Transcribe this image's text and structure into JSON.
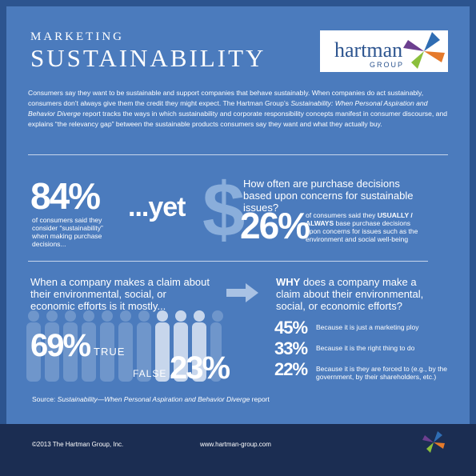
{
  "header": {
    "kicker": "MARKETING",
    "title": "SUSTAINABILITY",
    "logo": {
      "name": "hartman",
      "sub": "GROUP"
    }
  },
  "intro": [
    "Consumers say they want to be sustainable and support companies that behave sustainably. When companies do act sustainably, consumers don’t always give them the credit they might expect. The Hartman Group’s ",
    "Sustainability: When Personal Aspiration and Behavior Diverge",
    " report tracks the ways in which sustainability and corporate responsibility concepts manifest in consumer discourse, and explains “the relevancy gap” between the sustainable products consumers say they want and what they actually buy."
  ],
  "stat1": {
    "value": "84%",
    "text": "of consumers said they consider “sustainability” when making purchase decisions..."
  },
  "yet": "...yet",
  "dollar_icon": "$",
  "question1": "How often are purchase decisions based upon concerns for sustainable issues?",
  "stat2": {
    "value": "26%",
    "text_pre": "of consumers said they ",
    "emph": "USUALLY / ALWAYS",
    "text_post": " base purchase decisions upon concerns for issues such as the environment and social well-being"
  },
  "claim": {
    "question": "When a company makes a claim about their environmental, social, or economic efforts is it mostly...",
    "true": {
      "value": "69%",
      "label": "TRUE"
    },
    "false": {
      "value": "23%",
      "label": "FALSE"
    }
  },
  "why": {
    "question_emph": "WHY",
    "question": " does a company make a claim about their environmental, social, or economic efforts?",
    "reasons": [
      {
        "value": "45%",
        "label": "Because it is just a marketing ploy"
      },
      {
        "value": "33%",
        "label": "Because it is the right thing to do"
      },
      {
        "value": "22%",
        "label": "Because it is they are forced to (e.g., by the government, by their shareholders, etc.)"
      }
    ]
  },
  "source": {
    "prefix": "Source: ",
    "title": "Sustainability—When Personal Aspiration and Behavior Diverge",
    "suffix": " report"
  },
  "footer": {
    "copyright": "©2013 The Hartman Group, Inc.",
    "url": "www.hartman-group.com"
  }
}
